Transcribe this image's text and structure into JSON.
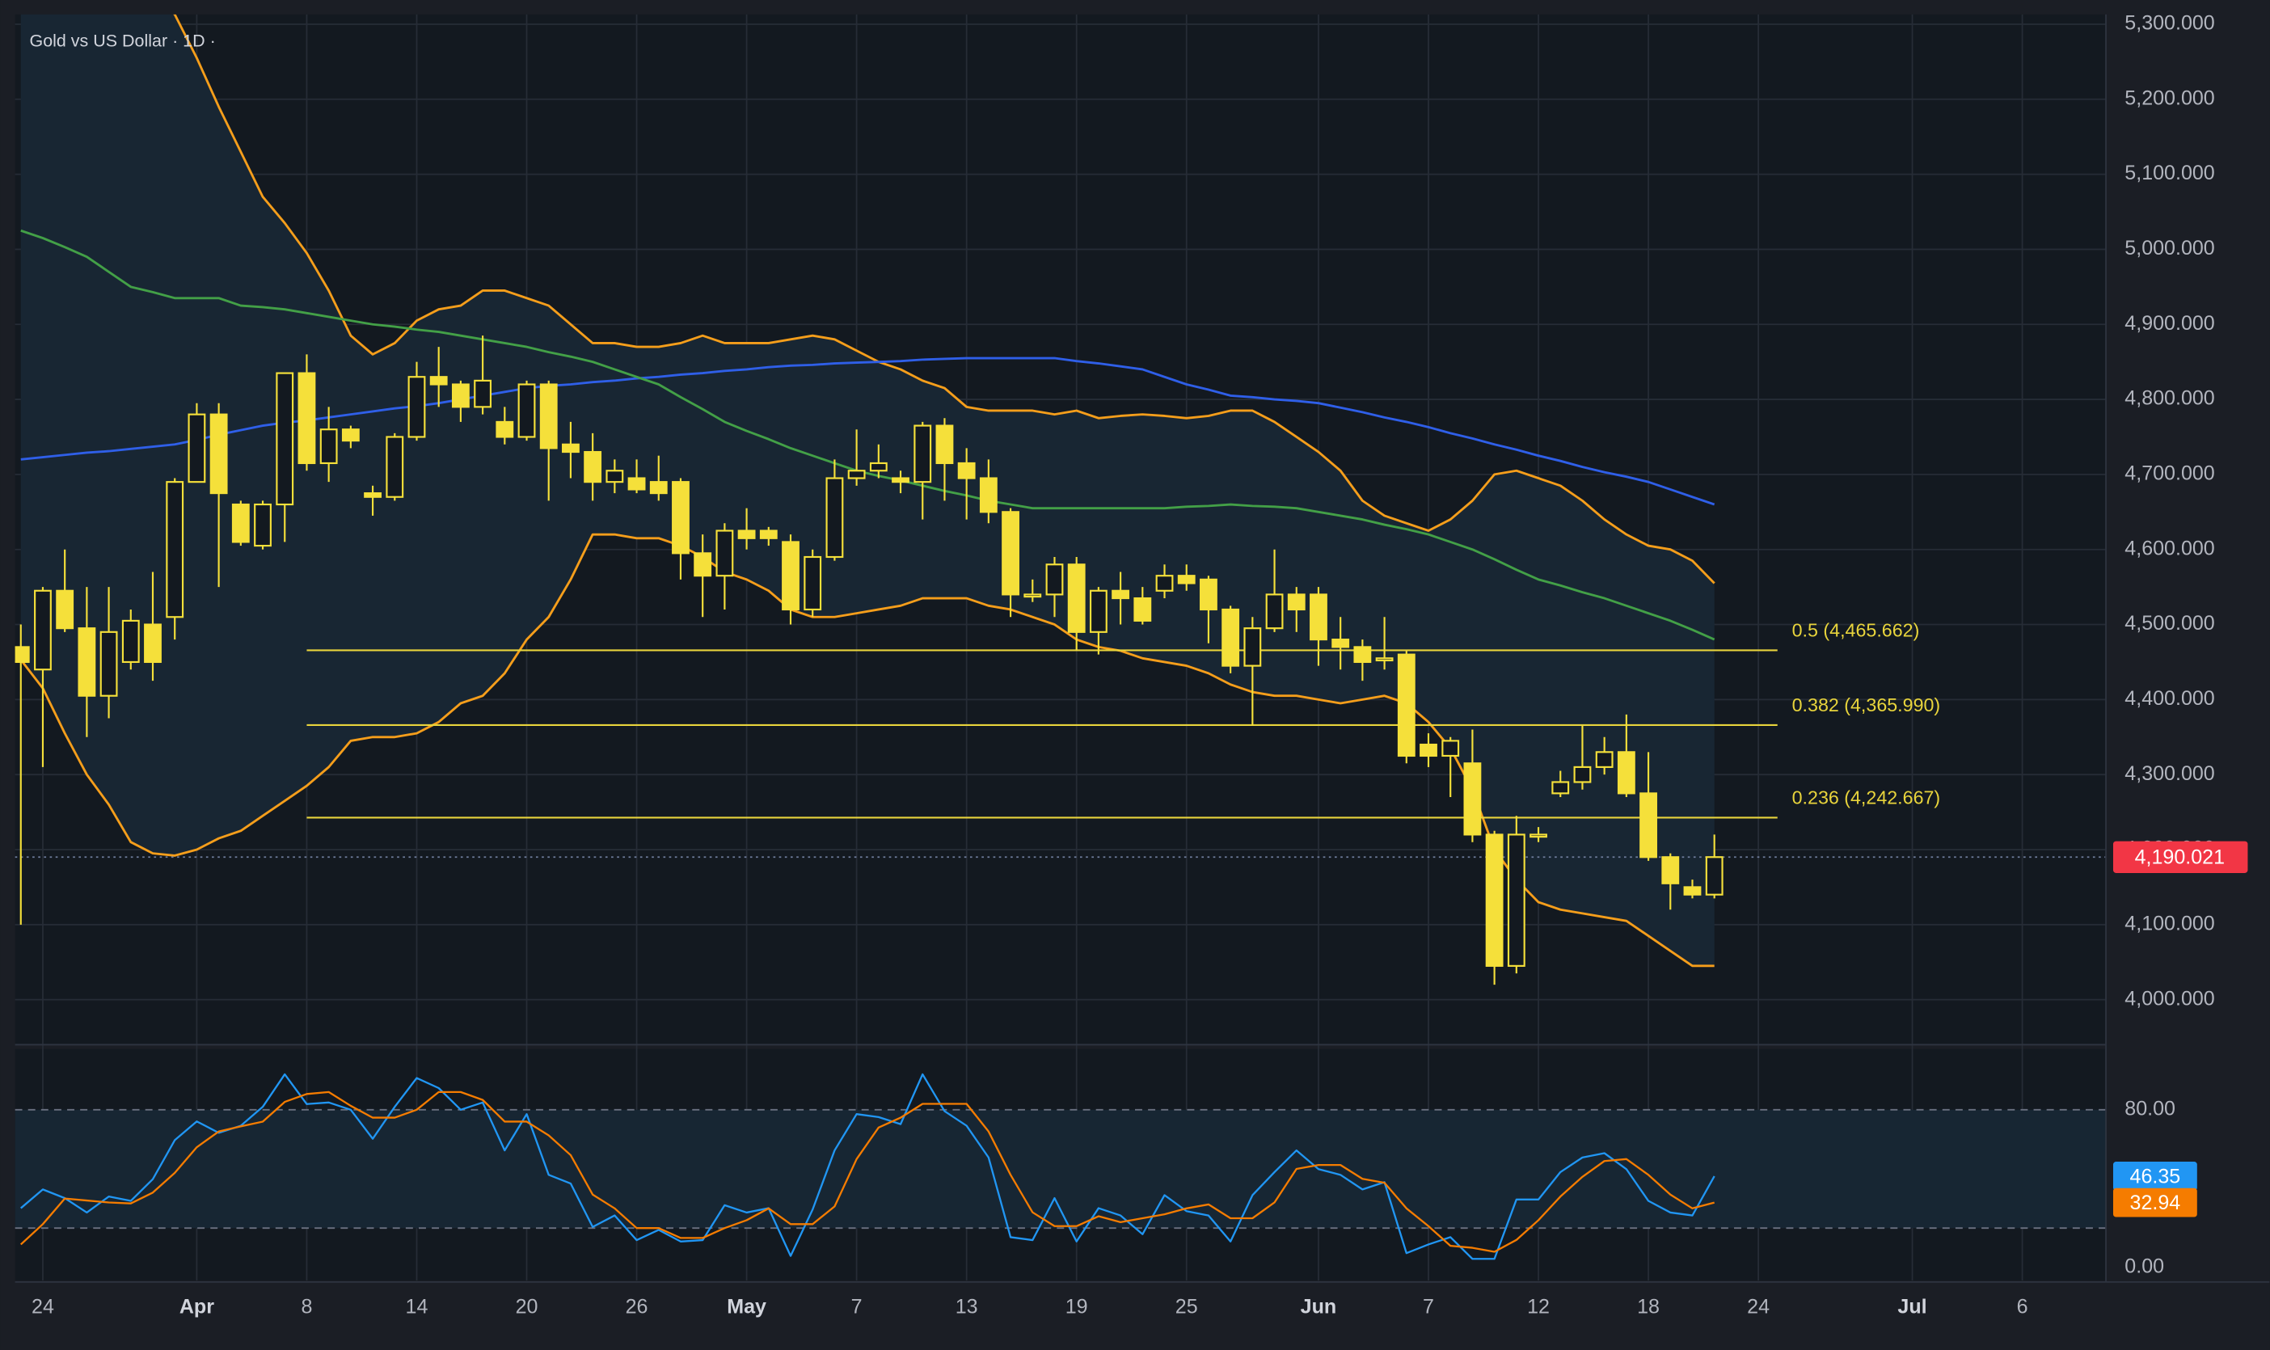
{
  "chart_data": [
    {
      "type": "candlestick",
      "title": "Gold vs US Dollar · 1D ·",
      "categories": [
        null,
        "24",
        null,
        null,
        null,
        null,
        null,
        null,
        "Apr",
        null,
        null,
        null,
        null,
        "8",
        null,
        null,
        null,
        null,
        "14",
        null,
        null,
        null,
        null,
        "20",
        null,
        null,
        null,
        null,
        "26",
        null,
        null,
        null,
        null,
        "May",
        null,
        null,
        null,
        null,
        "7",
        null,
        null,
        null,
        null,
        "13",
        null,
        null,
        null,
        null,
        "19",
        null,
        null,
        null,
        null,
        "25",
        null,
        null,
        null,
        null,
        null,
        "Jun",
        null,
        null,
        null,
        null,
        "7",
        null,
        null,
        null,
        null,
        "12",
        null,
        null,
        null,
        null,
        "18",
        null,
        null,
        null,
        null,
        "24",
        null,
        null,
        null,
        null,
        null,
        null,
        "Jul",
        null,
        null,
        null,
        null,
        "6"
      ],
      "open": [
        4470,
        4440,
        4545,
        4495,
        4405,
        4450,
        4500,
        4510,
        4690,
        4780,
        4660,
        4605,
        4660,
        4835,
        4715,
        4760,
        4675,
        4670,
        4750,
        4830,
        4820,
        4790,
        4770,
        4750,
        4820,
        4740,
        4730,
        4690,
        4695,
        4690,
        4690,
        4595,
        4565,
        4625,
        4625,
        4610,
        4520,
        4590,
        4695,
        4705,
        4695,
        4690,
        4765,
        4715,
        4695,
        4650,
        4540,
        4540,
        4580,
        4490,
        4545,
        4535,
        4545,
        4565,
        4560,
        4520,
        4445,
        4495,
        4540,
        4540,
        4480,
        4470,
        4455,
        4460,
        4340,
        4325,
        4315,
        4220,
        4045,
        4220,
        4275,
        4290,
        4310,
        4330,
        4275,
        4190,
        4150,
        4140,
        null,
        null,
        null,
        null,
        null,
        null,
        null,
        null,
        null,
        null,
        null,
        null,
        null,
        null
      ],
      "high": [
        4500,
        4550,
        4600,
        4550,
        4550,
        4520,
        4570,
        4695,
        4795,
        4795,
        4665,
        4665,
        4835,
        4860,
        4790,
        4765,
        4685,
        4755,
        4850,
        4870,
        4825,
        4885,
        4790,
        4825,
        4825,
        4770,
        4755,
        4720,
        4720,
        4725,
        4695,
        4620,
        4635,
        4655,
        4630,
        4620,
        4600,
        4720,
        4760,
        4740,
        4705,
        4770,
        4775,
        4735,
        4720,
        4655,
        4560,
        4590,
        4590,
        4550,
        4570,
        4550,
        4580,
        4580,
        4565,
        4525,
        4510,
        4600,
        4550,
        4550,
        4510,
        4480,
        4510,
        4465,
        4355,
        4350,
        4360,
        4225,
        4245,
        4230,
        4305,
        4365,
        4350,
        4380,
        4330,
        4195,
        4160,
        4220,
        null,
        null,
        null,
        null,
        null,
        null,
        null,
        null,
        null,
        null,
        null,
        null,
        null,
        null
      ],
      "low": [
        4100,
        4310,
        4490,
        4350,
        4375,
        4440,
        4425,
        4480,
        4690,
        4550,
        4605,
        4600,
        4610,
        4705,
        4690,
        4735,
        4645,
        4665,
        4745,
        4790,
        4770,
        4780,
        4740,
        4745,
        4665,
        4695,
        4665,
        4675,
        4675,
        4665,
        4560,
        4510,
        4520,
        4600,
        4605,
        4500,
        4510,
        4585,
        4685,
        4695,
        4675,
        4640,
        4665,
        4640,
        4635,
        4510,
        4530,
        4510,
        4465,
        4460,
        4500,
        4500,
        4535,
        4545,
        4475,
        4435,
        4365,
        4490,
        4490,
        4445,
        4440,
        4425,
        4440,
        4315,
        4310,
        4270,
        4210,
        4020,
        4035,
        4210,
        4270,
        4280,
        4300,
        4270,
        4185,
        4120,
        4135,
        4135,
        null,
        null,
        null,
        null,
        null,
        null,
        null,
        null,
        null,
        null,
        null,
        null,
        null,
        null
      ],
      "close": [
        4450,
        4545,
        4495,
        4405,
        4490,
        4505,
        4450,
        4690,
        4780,
        4675,
        4610,
        4660,
        4835,
        4715,
        4760,
        4745,
        4670,
        4750,
        4830,
        4820,
        4790,
        4825,
        4750,
        4820,
        4735,
        4730,
        4690,
        4705,
        4680,
        4675,
        4595,
        4565,
        4625,
        4615,
        4615,
        4520,
        4590,
        4695,
        4705,
        4715,
        4690,
        4765,
        4715,
        4695,
        4650,
        4540,
        4540,
        4580,
        4490,
        4545,
        4535,
        4505,
        4565,
        4555,
        4520,
        4445,
        4495,
        4540,
        4520,
        4480,
        4470,
        4450,
        4455,
        4325,
        4325,
        4345,
        4220,
        4045,
        4220,
        4220,
        4290,
        4310,
        4330,
        4275,
        4190,
        4155,
        4140,
        4190.021,
        null,
        null,
        null,
        null,
        null,
        null,
        null,
        null,
        null,
        null,
        null,
        null,
        null,
        null
      ],
      "color": "#f5e03a",
      "ylim": [
        3940,
        5313
      ],
      "yticks": [
        {
          "value": 4000,
          "label": "4,000.000"
        },
        {
          "value": 4100,
          "label": "4,100.000"
        },
        {
          "value": 4200,
          "label": "4,200.000"
        },
        {
          "value": 4300,
          "label": "4,300.000"
        },
        {
          "value": 4400,
          "label": "4,400.000"
        },
        {
          "value": 4500,
          "label": "4,500.000"
        },
        {
          "value": 4600,
          "label": "4,600.000"
        },
        {
          "value": 4700,
          "label": "4,700.000"
        },
        {
          "value": 4800,
          "label": "4,800.000"
        },
        {
          "value": 4900,
          "label": "4,900.000"
        },
        {
          "value": 5000,
          "label": "5,000.000"
        },
        {
          "value": 5100,
          "label": "5,100.000"
        },
        {
          "value": 5200,
          "label": "5,200.000"
        },
        {
          "value": 5300,
          "label": "5,300.000"
        }
      ],
      "grid": true,
      "band_fill": "#182633",
      "overlays": [
        {
          "color": "#f59e1b",
          "values": [
            5560,
            5530,
            5500,
            5460,
            5420,
            5380,
            5345,
            5313,
            5255,
            5190,
            5130,
            5070,
            5035,
            4995,
            4945,
            4885,
            4860,
            4875,
            4905,
            4920,
            4925,
            4945,
            4945,
            4935,
            4925,
            4900,
            4875,
            4875,
            4870,
            4870,
            4875,
            4885,
            4875,
            4875,
            4875,
            4880,
            4885,
            4880,
            4865,
            4850,
            4840,
            4825,
            4815,
            4790,
            4785,
            4785,
            4785,
            4780,
            4785,
            4775,
            4778,
            4780,
            4778,
            4775,
            4778,
            4785,
            4785,
            4770,
            4750,
            4730,
            4705,
            4665,
            4645,
            4635,
            4625,
            4640,
            4665,
            4700,
            4705,
            4695,
            4685,
            4665,
            4640,
            4620,
            4605,
            4600,
            4585,
            4555,
            null,
            null,
            null,
            null,
            null,
            null,
            null,
            null,
            null,
            null,
            null,
            null,
            null,
            null
          ]
        },
        {
          "color": "#f59e1b",
          "values": [
            4453,
            4415,
            4355,
            4300,
            4260,
            4210,
            4195,
            4192,
            4200,
            4215,
            4225,
            4245,
            4265,
            4285,
            4310,
            4345,
            4350,
            4350,
            4355,
            4370,
            4395,
            4405,
            4435,
            4480,
            4510,
            4560,
            4620,
            4620,
            4615,
            4615,
            4605,
            4590,
            4570,
            4560,
            4545,
            4520,
            4510,
            4510,
            4515,
            4520,
            4525,
            4535,
            4535,
            4535,
            4525,
            4520,
            4510,
            4500,
            4480,
            4470,
            4465,
            4455,
            4450,
            4445,
            4435,
            4420,
            4410,
            4405,
            4405,
            4400,
            4395,
            4400,
            4405,
            4395,
            4370,
            4335,
            4280,
            4200,
            4160,
            4130,
            4120,
            4115,
            4110,
            4105,
            4085,
            4065,
            4045,
            4045,
            null,
            null,
            null,
            null,
            null,
            null,
            null,
            null,
            null,
            null,
            null,
            null,
            null,
            null
          ]
        },
        {
          "color": "#2f5fe8",
          "values": [
            4720,
            4723,
            4726,
            4729,
            4731,
            4734,
            4737,
            4740,
            4746,
            4753,
            4759,
            4765,
            4769,
            4772,
            4776,
            4780,
            4784,
            4788,
            4791,
            4795,
            4800,
            4805,
            4810,
            4815,
            4818,
            4820,
            4823,
            4825,
            4828,
            4830,
            4833,
            4835,
            4838,
            4840,
            4843,
            4845,
            4846,
            4848,
            4849,
            4850,
            4851,
            4853,
            4854,
            4855,
            4855,
            4855,
            4855,
            4855,
            4851,
            4848,
            4844,
            4840,
            4830,
            4820,
            4813,
            4805,
            4803,
            4800,
            4798,
            4795,
            4789,
            4783,
            4776,
            4770,
            4763,
            4755,
            4748,
            4740,
            4733,
            4725,
            4718,
            4710,
            4703,
            4697,
            4690,
            4680,
            4670,
            4660,
            null,
            null,
            null,
            null,
            null,
            null,
            null,
            null,
            null,
            null,
            null,
            null,
            null,
            null
          ]
        },
        {
          "color": "#43a047",
          "values": [
            5025,
            5015,
            5003,
            4990,
            4970,
            4950,
            4943,
            4935,
            4935,
            4935,
            4925,
            4923,
            4920,
            4915,
            4910,
            4905,
            4900,
            4897,
            4893,
            4890,
            4885,
            4880,
            4875,
            4870,
            4863,
            4857,
            4850,
            4840,
            4830,
            4820,
            4803,
            4787,
            4770,
            4758,
            4747,
            4735,
            4725,
            4715,
            4705,
            4698,
            4692,
            4685,
            4678,
            4672,
            4665,
            4660,
            4655,
            4655,
            4655,
            4655,
            4655,
            4655,
            4655,
            4657,
            4658,
            4660,
            4658,
            4657,
            4655,
            4650,
            4645,
            4640,
            4633,
            4627,
            4620,
            4610,
            4600,
            4587,
            4573,
            4560,
            4552,
            4543,
            4535,
            4525,
            4515,
            4505,
            4493,
            4480,
            null,
            null,
            null,
            null,
            null,
            null,
            null,
            null,
            null,
            null,
            null,
            null,
            null,
            null
          ]
        }
      ],
      "fib_color": "#e8d43c",
      "fib_levels": [
        {
          "value": 4465.662,
          "label": "0.5 (4,465.662)"
        },
        {
          "value": 4365.99,
          "label": "0.382 (4,365.990)"
        },
        {
          "value": 4242.667,
          "label": "0.236 (4,242.667)"
        }
      ],
      "last_price": {
        "value": 4190.021,
        "label": "4,190.021"
      }
    },
    {
      "type": "line",
      "series": [
        {
          "color": "#2196f3",
          "values": [
            30.1,
            39.6,
            35.2,
            27.9,
            36.0,
            33.8,
            44.8,
            64.6,
            74.1,
            68.3,
            71.9,
            81.5,
            98.0,
            82.9,
            83.7,
            80.0,
            65.3,
            81.5,
            96.1,
            91.0,
            80.0,
            83.7,
            59.4,
            77.8,
            47.0,
            42.6,
            20.6,
            26.4,
            13.9,
            19.1,
            13.2,
            13.9,
            31.6,
            27.9,
            30.1,
            5.9,
            29.4,
            59.4,
            77.8,
            76.3,
            72.7,
            98.0,
            79.3,
            71.9,
            55.8,
            15.4,
            13.9,
            35.2,
            13.2,
            30.1,
            26.4,
            16.9,
            36.7,
            28.6,
            26.4,
            13.2,
            36.7,
            48.4,
            59.4,
            49.9,
            47.0,
            39.6,
            43.3,
            7.3,
            11.7,
            15.4,
            4.4,
            4.4,
            34.5,
            34.5,
            48.4,
            55.8,
            58.0,
            49.9,
            33.8,
            27.9,
            26.4,
            46.35,
            null,
            null,
            null,
            null,
            null,
            null,
            null,
            null,
            null,
            null,
            null,
            null,
            null,
            null
          ]
        },
        {
          "color": "#f57c00",
          "values": [
            11.7,
            22,
            35,
            34,
            33,
            32.5,
            38,
            48,
            61,
            69,
            71.6,
            74,
            84,
            88,
            89,
            82,
            76,
            76,
            80,
            89,
            89,
            85,
            74,
            74,
            67,
            57,
            37,
            30,
            20,
            20,
            15,
            15,
            20,
            24,
            30,
            22,
            22,
            31,
            55,
            71,
            76,
            83,
            83,
            83,
            69,
            47,
            28,
            21,
            21,
            26,
            23,
            25,
            27,
            30,
            32,
            25,
            25,
            33,
            50,
            52,
            52,
            45,
            43,
            30,
            21,
            11,
            10,
            8,
            14,
            24,
            36,
            46,
            54,
            55,
            47,
            37,
            30,
            32.94,
            null,
            null,
            null,
            null,
            null,
            null,
            null,
            null,
            null,
            null,
            null,
            null,
            null,
            null
          ]
        }
      ],
      "ylim": [
        -6.6,
        110.8
      ],
      "yticks": [
        {
          "value": 80,
          "label": "80.00"
        },
        {
          "value": 0,
          "label": "0.00"
        }
      ],
      "bands": [
        20,
        80
      ],
      "band_fill": "#172633"
    }
  ]
}
